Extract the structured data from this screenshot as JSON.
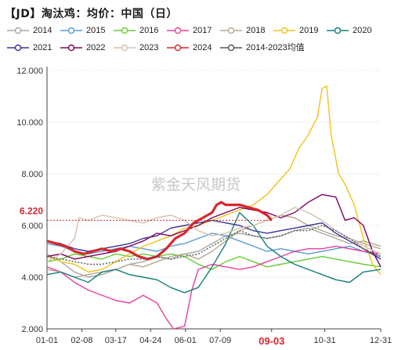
{
  "title": "【JD】淘汰鸡：均价：中国（日）",
  "watermark": "紫金天风期货",
  "colors": {
    "2014": "#a6a6a6",
    "2015": "#5b9bd5",
    "2016": "#66cc33",
    "2017": "#e8409a",
    "2018": "#b5a98c",
    "2019": "#f2c21a",
    "2020": "#137c7c",
    "2021": "#3a3395",
    "2022": "#800060",
    "2023": "#d6bfae",
    "2024": "#d9272c",
    "avg": "#555555"
  },
  "chart_data": {
    "type": "line",
    "title": "【JD】淘汰鸡：均价：中国（日）",
    "xlabel": "",
    "ylabel": "",
    "ylim": [
      2.0,
      12.0
    ],
    "y_ticks": [
      "2.000",
      "4.000",
      "6.000",
      "8.000",
      "10.000",
      "12.000"
    ],
    "x_ticks": [
      "01-01",
      "02-08",
      "03-17",
      "04-24",
      "06-01",
      "07-09",
      "09-03",
      "10-31",
      "12-31"
    ],
    "grid": true,
    "legend_position": "top",
    "current_value_label": "6.220",
    "current_date_label": "09-03",
    "series": [
      {
        "name": "2014",
        "points": [
          [
            0,
            4.9
          ],
          [
            15,
            4.6
          ],
          [
            30,
            4.2
          ],
          [
            45,
            4.0
          ],
          [
            60,
            4.1
          ],
          [
            75,
            4.3
          ],
          [
            90,
            4.5
          ],
          [
            105,
            4.6
          ],
          [
            120,
            4.8
          ],
          [
            135,
            4.7
          ],
          [
            150,
            4.9
          ],
          [
            165,
            5.0
          ],
          [
            180,
            5.3
          ],
          [
            195,
            5.6
          ],
          [
            210,
            5.7
          ],
          [
            225,
            5.6
          ],
          [
            240,
            5.5
          ],
          [
            255,
            5.6
          ],
          [
            270,
            5.8
          ],
          [
            285,
            5.9
          ],
          [
            300,
            5.7
          ],
          [
            315,
            5.5
          ],
          [
            330,
            5.3
          ],
          [
            345,
            5.4
          ],
          [
            364,
            5.2
          ]
        ]
      },
      {
        "name": "2015",
        "points": [
          [
            0,
            5.3
          ],
          [
            15,
            5.2
          ],
          [
            30,
            5.0
          ],
          [
            45,
            4.9
          ],
          [
            60,
            5.0
          ],
          [
            75,
            5.1
          ],
          [
            90,
            5.2
          ],
          [
            105,
            5.1
          ],
          [
            120,
            5.0
          ],
          [
            135,
            5.2
          ],
          [
            150,
            5.3
          ],
          [
            165,
            5.5
          ],
          [
            180,
            5.7
          ],
          [
            195,
            5.6
          ],
          [
            210,
            5.4
          ],
          [
            225,
            5.2
          ],
          [
            240,
            5.0
          ],
          [
            255,
            5.1
          ],
          [
            270,
            5.0
          ],
          [
            285,
            4.9
          ],
          [
            300,
            5.0
          ],
          [
            315,
            5.1
          ],
          [
            330,
            5.2
          ],
          [
            345,
            5.0
          ],
          [
            364,
            4.8
          ]
        ]
      },
      {
        "name": "2016",
        "points": [
          [
            0,
            4.6
          ],
          [
            15,
            4.7
          ],
          [
            30,
            4.9
          ],
          [
            45,
            4.8
          ],
          [
            60,
            4.7
          ],
          [
            75,
            4.9
          ],
          [
            90,
            4.8
          ],
          [
            105,
            4.9
          ],
          [
            120,
            4.8
          ],
          [
            135,
            4.9
          ],
          [
            150,
            4.8
          ],
          [
            165,
            4.5
          ],
          [
            180,
            4.3
          ],
          [
            195,
            4.6
          ],
          [
            210,
            4.8
          ],
          [
            225,
            4.6
          ],
          [
            240,
            4.4
          ],
          [
            255,
            4.5
          ],
          [
            270,
            4.6
          ],
          [
            285,
            4.7
          ],
          [
            300,
            4.8
          ],
          [
            315,
            4.7
          ],
          [
            330,
            4.6
          ],
          [
            345,
            4.5
          ],
          [
            364,
            4.4
          ]
        ]
      },
      {
        "name": "2017",
        "points": [
          [
            0,
            4.4
          ],
          [
            15,
            4.2
          ],
          [
            30,
            3.8
          ],
          [
            45,
            3.5
          ],
          [
            60,
            3.3
          ],
          [
            75,
            3.1
          ],
          [
            90,
            3.0
          ],
          [
            105,
            3.3
          ],
          [
            120,
            3.0
          ],
          [
            130,
            2.4
          ],
          [
            138,
            2.0
          ],
          [
            150,
            2.1
          ],
          [
            158,
            3.5
          ],
          [
            165,
            4.3
          ],
          [
            180,
            4.5
          ],
          [
            195,
            4.4
          ],
          [
            210,
            4.3
          ],
          [
            225,
            4.4
          ],
          [
            240,
            4.6
          ],
          [
            255,
            4.8
          ],
          [
            270,
            5.0
          ],
          [
            285,
            5.1
          ],
          [
            300,
            5.1
          ],
          [
            315,
            5.2
          ],
          [
            330,
            5.1
          ],
          [
            345,
            5.0
          ],
          [
            364,
            4.9
          ]
        ]
      },
      {
        "name": "2018",
        "points": [
          [
            0,
            4.3
          ],
          [
            15,
            4.2
          ],
          [
            30,
            4.0
          ],
          [
            45,
            4.1
          ],
          [
            60,
            4.2
          ],
          [
            75,
            4.3
          ],
          [
            90,
            4.5
          ],
          [
            105,
            4.4
          ],
          [
            120,
            4.6
          ],
          [
            135,
            4.8
          ],
          [
            150,
            4.9
          ],
          [
            165,
            4.7
          ],
          [
            180,
            5.0
          ],
          [
            195,
            5.4
          ],
          [
            210,
            5.8
          ],
          [
            225,
            6.0
          ],
          [
            240,
            6.2
          ],
          [
            255,
            6.4
          ],
          [
            270,
            6.3
          ],
          [
            285,
            6.0
          ],
          [
            300,
            5.8
          ],
          [
            315,
            5.6
          ],
          [
            330,
            5.5
          ],
          [
            345,
            5.3
          ],
          [
            364,
            5.1
          ]
        ]
      },
      {
        "name": "2019",
        "points": [
          [
            0,
            4.8
          ],
          [
            15,
            4.6
          ],
          [
            30,
            4.5
          ],
          [
            45,
            4.2
          ],
          [
            60,
            4.3
          ],
          [
            75,
            4.6
          ],
          [
            90,
            4.9
          ],
          [
            105,
            5.2
          ],
          [
            120,
            5.4
          ],
          [
            135,
            5.6
          ],
          [
            150,
            5.9
          ],
          [
            165,
            6.0
          ],
          [
            180,
            6.2
          ],
          [
            195,
            6.4
          ],
          [
            210,
            6.6
          ],
          [
            225,
            6.8
          ],
          [
            240,
            7.2
          ],
          [
            255,
            7.8
          ],
          [
            265,
            8.2
          ],
          [
            275,
            9.0
          ],
          [
            285,
            9.5
          ],
          [
            295,
            10.2
          ],
          [
            300,
            11.3
          ],
          [
            305,
            11.4
          ],
          [
            310,
            9.5
          ],
          [
            318,
            8.0
          ],
          [
            325,
            7.6
          ],
          [
            335,
            6.8
          ],
          [
            345,
            5.5
          ],
          [
            355,
            4.5
          ],
          [
            364,
            4.1
          ]
        ]
      },
      {
        "name": "2020",
        "points": [
          [
            0,
            4.1
          ],
          [
            15,
            4.2
          ],
          [
            30,
            4.0
          ],
          [
            45,
            3.8
          ],
          [
            60,
            4.2
          ],
          [
            75,
            4.3
          ],
          [
            90,
            4.1
          ],
          [
            105,
            4.0
          ],
          [
            120,
            3.9
          ],
          [
            135,
            3.6
          ],
          [
            150,
            3.4
          ],
          [
            165,
            3.6
          ],
          [
            180,
            4.4
          ],
          [
            195,
            5.3
          ],
          [
            210,
            6.5
          ],
          [
            225,
            6.0
          ],
          [
            240,
            5.2
          ],
          [
            255,
            4.8
          ],
          [
            270,
            4.5
          ],
          [
            285,
            4.3
          ],
          [
            300,
            4.1
          ],
          [
            315,
            3.9
          ],
          [
            330,
            3.8
          ],
          [
            345,
            4.2
          ],
          [
            364,
            4.3
          ]
        ]
      },
      {
        "name": "2021",
        "points": [
          [
            0,
            5.4
          ],
          [
            15,
            5.3
          ],
          [
            30,
            5.1
          ],
          [
            45,
            5.0
          ],
          [
            60,
            5.1
          ],
          [
            75,
            5.2
          ],
          [
            90,
            5.3
          ],
          [
            105,
            5.5
          ],
          [
            120,
            5.6
          ],
          [
            135,
            5.9
          ],
          [
            150,
            6.0
          ],
          [
            165,
            6.1
          ],
          [
            180,
            6.2
          ],
          [
            195,
            6.1
          ],
          [
            210,
            6.0
          ],
          [
            225,
            5.8
          ],
          [
            240,
            5.7
          ],
          [
            255,
            5.8
          ],
          [
            270,
            5.9
          ],
          [
            285,
            6.0
          ],
          [
            300,
            6.1
          ],
          [
            315,
            5.7
          ],
          [
            330,
            5.4
          ],
          [
            345,
            5.1
          ],
          [
            364,
            4.7
          ]
        ]
      },
      {
        "name": "2022",
        "points": [
          [
            0,
            4.8
          ],
          [
            15,
            4.9
          ],
          [
            30,
            4.7
          ],
          [
            45,
            4.8
          ],
          [
            60,
            4.9
          ],
          [
            75,
            5.0
          ],
          [
            90,
            5.2
          ],
          [
            105,
            5.4
          ],
          [
            120,
            5.7
          ],
          [
            135,
            5.6
          ],
          [
            150,
            5.8
          ],
          [
            165,
            6.0
          ],
          [
            180,
            6.3
          ],
          [
            195,
            6.5
          ],
          [
            210,
            6.7
          ],
          [
            225,
            6.6
          ],
          [
            240,
            6.5
          ],
          [
            255,
            6.3
          ],
          [
            270,
            6.5
          ],
          [
            285,
            6.9
          ],
          [
            300,
            7.2
          ],
          [
            315,
            7.1
          ],
          [
            325,
            6.2
          ],
          [
            335,
            6.3
          ],
          [
            345,
            6.0
          ],
          [
            355,
            5.0
          ],
          [
            364,
            4.4
          ]
        ]
      },
      {
        "name": "2023",
        "points": [
          [
            0,
            4.6
          ],
          [
            15,
            4.9
          ],
          [
            30,
            5.5
          ],
          [
            35,
            6.3
          ],
          [
            45,
            6.2
          ],
          [
            60,
            6.4
          ],
          [
            75,
            6.3
          ],
          [
            90,
            6.2
          ],
          [
            105,
            6.1
          ],
          [
            120,
            6.3
          ],
          [
            135,
            6.4
          ],
          [
            150,
            6.2
          ],
          [
            165,
            5.8
          ],
          [
            180,
            5.6
          ],
          [
            195,
            5.7
          ],
          [
            210,
            5.9
          ],
          [
            225,
            6.0
          ],
          [
            240,
            6.2
          ],
          [
            255,
            6.4
          ],
          [
            270,
            6.7
          ],
          [
            285,
            6.5
          ],
          [
            300,
            6.2
          ],
          [
            315,
            5.8
          ],
          [
            330,
            5.5
          ],
          [
            345,
            5.2
          ],
          [
            364,
            4.9
          ]
        ]
      },
      {
        "name": "2024",
        "points": [
          [
            0,
            5.4
          ],
          [
            10,
            5.3
          ],
          [
            20,
            5.2
          ],
          [
            30,
            5.0
          ],
          [
            40,
            4.9
          ],
          [
            50,
            5.0
          ],
          [
            60,
            5.1
          ],
          [
            70,
            5.0
          ],
          [
            80,
            5.1
          ],
          [
            90,
            5.0
          ],
          [
            100,
            4.8
          ],
          [
            110,
            4.7
          ],
          [
            120,
            4.8
          ],
          [
            130,
            5.1
          ],
          [
            140,
            5.5
          ],
          [
            150,
            5.7
          ],
          [
            160,
            6.1
          ],
          [
            170,
            6.3
          ],
          [
            180,
            6.5
          ],
          [
            185,
            6.8
          ],
          [
            190,
            6.9
          ],
          [
            195,
            6.8
          ],
          [
            200,
            6.8
          ],
          [
            210,
            6.8
          ],
          [
            220,
            6.7
          ],
          [
            230,
            6.6
          ],
          [
            240,
            6.4
          ],
          [
            245,
            6.2
          ]
        ]
      },
      {
        "name": "2014-2023均值",
        "points": [
          [
            0,
            4.8
          ],
          [
            15,
            4.7
          ],
          [
            30,
            4.6
          ],
          [
            45,
            4.5
          ],
          [
            60,
            4.5
          ],
          [
            75,
            4.6
          ],
          [
            90,
            4.7
          ],
          [
            105,
            4.7
          ],
          [
            120,
            4.8
          ],
          [
            135,
            4.7
          ],
          [
            150,
            4.8
          ],
          [
            165,
            4.9
          ],
          [
            180,
            5.2
          ],
          [
            195,
            5.5
          ],
          [
            210,
            5.8
          ],
          [
            225,
            5.6
          ],
          [
            240,
            5.5
          ],
          [
            255,
            5.6
          ],
          [
            270,
            5.8
          ],
          [
            285,
            5.8
          ],
          [
            300,
            6.0
          ],
          [
            315,
            5.8
          ],
          [
            330,
            5.5
          ],
          [
            345,
            5.1
          ],
          [
            364,
            4.8
          ]
        ]
      }
    ]
  }
}
